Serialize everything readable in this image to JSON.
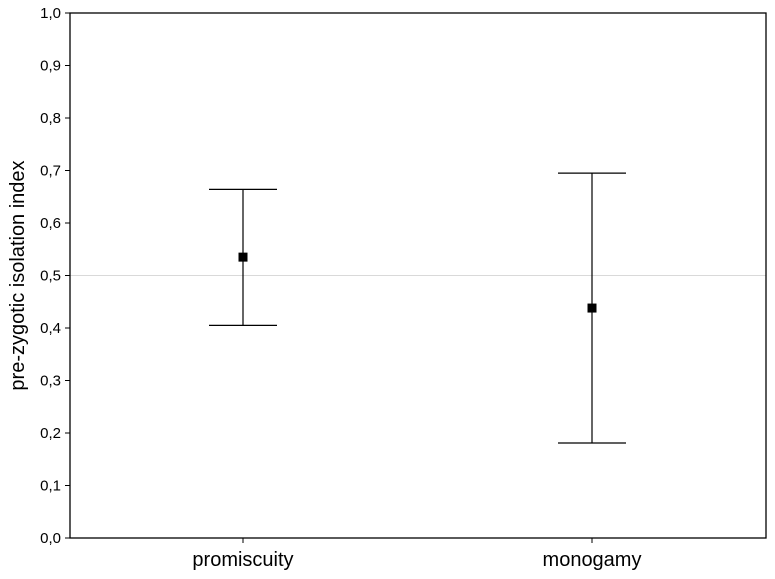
{
  "chart_data": {
    "type": "scatter",
    "title": "",
    "xlabel": "",
    "ylabel": "pre-zygotic isolation index",
    "ylim": [
      0,
      1
    ],
    "yticks": [
      0,
      0.1,
      0.2,
      0.3,
      0.4,
      0.5,
      0.6,
      0.7,
      0.8,
      0.9,
      1.0
    ],
    "ytick_labels": [
      "0,0",
      "0,1",
      "0,2",
      "0,3",
      "0,4",
      "0,5",
      "0,6",
      "0,7",
      "0,8",
      "0,9",
      "1,0"
    ],
    "categories": [
      "promiscuity",
      "monogamy"
    ],
    "points": [
      {
        "category": "promiscuity",
        "mean": 0.535,
        "lower": 0.405,
        "upper": 0.664
      },
      {
        "category": "monogamy",
        "mean": 0.438,
        "lower": 0.181,
        "upper": 0.695
      }
    ],
    "reference_line": 0.5,
    "grid": false,
    "colors": {
      "marker": "#000000",
      "errorbar": "#000000",
      "reference_line": "#d9d9d9",
      "frame": "#000000"
    }
  }
}
